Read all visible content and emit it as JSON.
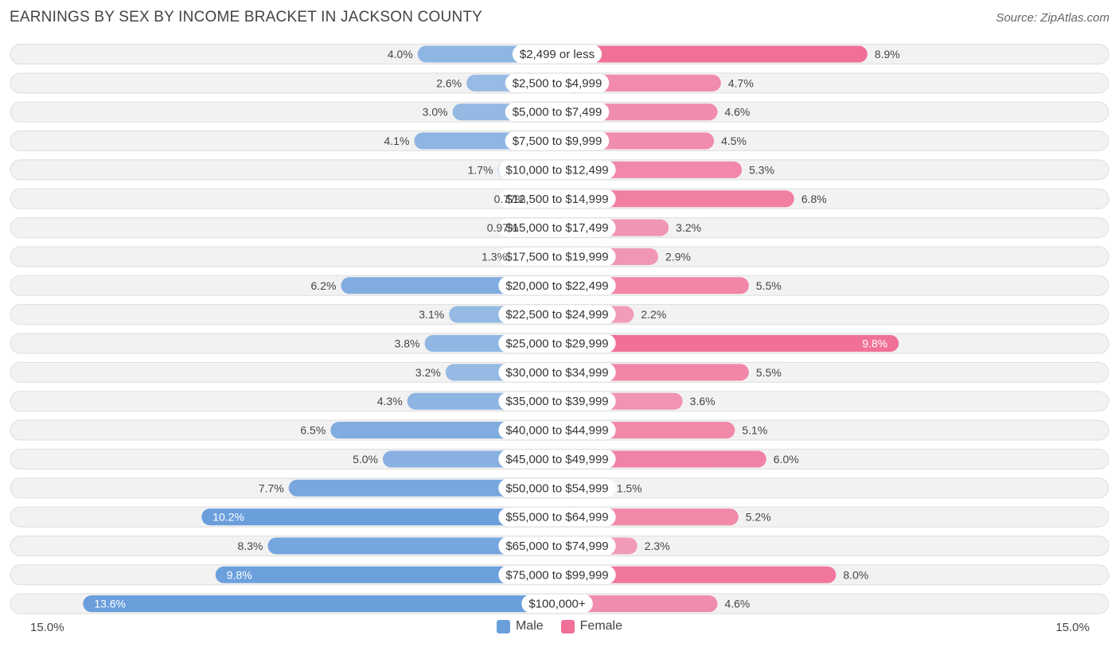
{
  "title": "EARNINGS BY SEX BY INCOME BRACKET IN JACKSON COUNTY",
  "source": "Source: ZipAtlas.com",
  "colors": {
    "male": "#6a9fdc",
    "female": "#f07098"
  },
  "chart_data": {
    "type": "bar",
    "orientation": "horizontal-diverging",
    "title": "EARNINGS BY SEX BY INCOME BRACKET IN JACKSON COUNTY",
    "categories": [
      "$2,499 or less",
      "$2,500 to $4,999",
      "$5,000 to $7,499",
      "$7,500 to $9,999",
      "$10,000 to $12,499",
      "$12,500 to $14,999",
      "$15,000 to $17,499",
      "$17,500 to $19,999",
      "$20,000 to $22,499",
      "$22,500 to $24,999",
      "$25,000 to $29,999",
      "$30,000 to $34,999",
      "$35,000 to $39,999",
      "$40,000 to $44,999",
      "$45,000 to $49,999",
      "$50,000 to $54,999",
      "$55,000 to $64,999",
      "$65,000 to $74,999",
      "$75,000 to $99,999",
      "$100,000+"
    ],
    "series": [
      {
        "name": "Male",
        "values": [
          4.0,
          2.6,
          3.0,
          4.1,
          1.7,
          0.77,
          0.97,
          1.3,
          6.2,
          3.1,
          3.8,
          3.2,
          4.3,
          6.5,
          5.0,
          7.7,
          10.2,
          8.3,
          9.8,
          13.6
        ],
        "labels": [
          "4.0%",
          "2.6%",
          "3.0%",
          "4.1%",
          "1.7%",
          "0.77%",
          "0.97%",
          "1.3%",
          "6.2%",
          "3.1%",
          "3.8%",
          "3.2%",
          "4.3%",
          "6.5%",
          "5.0%",
          "7.7%",
          "10.2%",
          "8.3%",
          "9.8%",
          "13.6%"
        ]
      },
      {
        "name": "Female",
        "values": [
          8.9,
          4.7,
          4.6,
          4.5,
          5.3,
          6.8,
          3.2,
          2.9,
          5.5,
          2.2,
          9.8,
          5.5,
          3.6,
          5.1,
          6.0,
          1.5,
          5.2,
          2.3,
          8.0,
          4.6
        ],
        "labels": [
          "8.9%",
          "4.7%",
          "4.6%",
          "4.5%",
          "5.3%",
          "6.8%",
          "3.2%",
          "2.9%",
          "5.5%",
          "2.2%",
          "9.8%",
          "5.5%",
          "3.6%",
          "5.1%",
          "6.0%",
          "1.5%",
          "5.2%",
          "2.3%",
          "8.0%",
          "4.6%"
        ]
      }
    ],
    "xlim": [
      -15.0,
      15.0
    ],
    "axis_labels": {
      "left": "15.0%",
      "right": "15.0%"
    },
    "legend": [
      "Male",
      "Female"
    ]
  }
}
